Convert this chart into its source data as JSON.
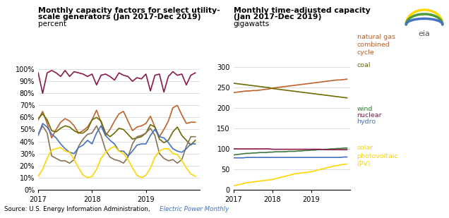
{
  "title1_line1": "Monthly capacity factors for select utility-",
  "title1_line2": "scale generators (Jan 2017-Dec 2019)",
  "ylabel1": "percent",
  "title2_line1": "Monthly time-adjusted capacity",
  "title2_line2": "(Jan 2017-Dec 2019)",
  "ylabel2": "gigawatts",
  "source": "Source: U.S. Energy Information Administration, ",
  "source_italic": "Electric Power Monthly",
  "colors": {
    "nuclear": "#8B1A4A",
    "wind": "#8B7355",
    "hydro": "#4472C4",
    "solar": "#FFD700",
    "ng_cc": "#C0622B",
    "coal": "#6B6B00",
    "wind_cap": "#3A7A3A"
  },
  "cf_nuclear": [
    97,
    80,
    97,
    99,
    97,
    94,
    99,
    94,
    98,
    97,
    96,
    94,
    96,
    87,
    95,
    96,
    94,
    91,
    97,
    95,
    94,
    90,
    93,
    92,
    96,
    82,
    95,
    96,
    81,
    94,
    98,
    95,
    96,
    87,
    95,
    97
  ],
  "cf_wind": [
    46,
    53,
    47,
    28,
    26,
    24,
    24,
    22,
    25,
    36,
    42,
    46,
    47,
    53,
    45,
    33,
    27,
    25,
    24,
    22,
    27,
    38,
    44,
    45,
    47,
    51,
    45,
    30,
    26,
    24,
    25,
    22,
    25,
    36,
    44,
    44
  ],
  "cf_hydro": [
    45,
    55,
    52,
    46,
    43,
    38,
    34,
    31,
    30,
    35,
    37,
    41,
    38,
    47,
    53,
    45,
    41,
    38,
    32,
    32,
    28,
    32,
    37,
    38,
    38,
    45,
    50,
    44,
    43,
    39,
    34,
    32,
    31,
    34,
    38,
    38
  ],
  "cf_solar": [
    11,
    17,
    26,
    33,
    34,
    35,
    32,
    31,
    25,
    18,
    12,
    10,
    11,
    17,
    26,
    31,
    34,
    36,
    32,
    30,
    25,
    18,
    12,
    10,
    12,
    18,
    27,
    32,
    34,
    34,
    30,
    29,
    24,
    18,
    13,
    11
  ],
  "cf_ng_cc": [
    58,
    65,
    55,
    43,
    50,
    56,
    59,
    57,
    53,
    47,
    49,
    52,
    58,
    66,
    56,
    45,
    50,
    57,
    63,
    65,
    57,
    49,
    52,
    53,
    55,
    61,
    52,
    44,
    50,
    57,
    68,
    70,
    62,
    55,
    56,
    56
  ],
  "cf_coal": [
    59,
    63,
    58,
    49,
    48,
    51,
    53,
    52,
    49,
    47,
    47,
    50,
    58,
    60,
    57,
    47,
    44,
    47,
    51,
    50,
    46,
    42,
    43,
    44,
    47,
    54,
    52,
    42,
    39,
    41,
    48,
    52,
    45,
    41,
    37,
    41
  ],
  "cap_ng_cc": [
    238,
    239,
    240,
    241,
    242,
    242,
    243,
    243,
    244,
    245,
    246,
    247,
    249,
    250,
    251,
    252,
    253,
    254,
    255,
    256,
    257,
    258,
    259,
    260,
    261,
    262,
    263,
    264,
    265,
    266,
    267,
    268,
    269,
    269,
    270,
    271
  ],
  "cap_coal": [
    261,
    260,
    259,
    258,
    257,
    256,
    255,
    254,
    253,
    252,
    251,
    250,
    248,
    247,
    246,
    245,
    244,
    243,
    242,
    241,
    240,
    239,
    238,
    237,
    236,
    235,
    234,
    233,
    232,
    231,
    230,
    229,
    228,
    227,
    226,
    225
  ],
  "cap_wind": [
    85,
    86,
    87,
    88,
    89,
    89,
    90,
    90,
    91,
    91,
    91,
    92,
    92,
    93,
    93,
    93,
    93,
    94,
    94,
    94,
    95,
    95,
    96,
    96,
    97,
    97,
    98,
    98,
    99,
    99,
    100,
    100,
    101,
    101,
    102,
    102
  ],
  "cap_nuclear": [
    100,
    100,
    100,
    100,
    100,
    100,
    100,
    100,
    100,
    100,
    100,
    100,
    99,
    99,
    99,
    99,
    99,
    99,
    99,
    99,
    99,
    99,
    99,
    99,
    99,
    99,
    99,
    99,
    98,
    98,
    98,
    98,
    98,
    98,
    98,
    98
  ],
  "cap_hydro": [
    78,
    78,
    78,
    78,
    79,
    79,
    79,
    79,
    79,
    79,
    79,
    79,
    79,
    79,
    79,
    79,
    79,
    79,
    79,
    79,
    79,
    79,
    79,
    79,
    79,
    79,
    79,
    79,
    79,
    79,
    79,
    79,
    79,
    79,
    80,
    80
  ],
  "cap_solar": [
    10,
    11,
    13,
    15,
    17,
    18,
    19,
    20,
    21,
    22,
    23,
    24,
    25,
    27,
    29,
    31,
    33,
    35,
    37,
    39,
    40,
    41,
    42,
    43,
    44,
    46,
    48,
    50,
    52,
    54,
    56,
    58,
    59,
    61,
    62,
    63
  ]
}
